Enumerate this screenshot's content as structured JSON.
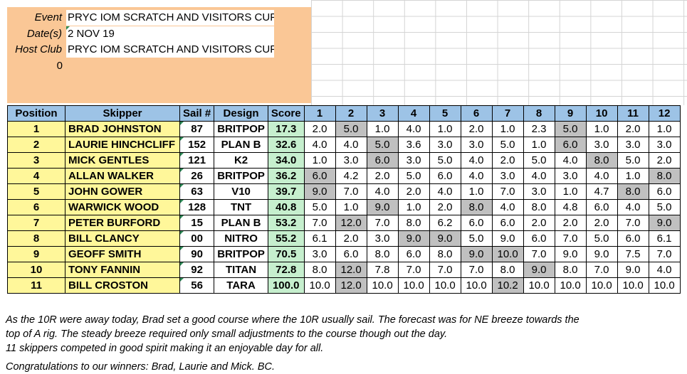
{
  "info": {
    "event_label": "Event",
    "event_value": "PRYC IOM SCRATCH AND VISITORS CUP",
    "dates_label": "Date(s)",
    "dates_value": "2 NOV 19",
    "host_label": "Host Club",
    "host_value": "PRYC IOM SCRATCH AND VISITORS CUP",
    "zero": "0"
  },
  "table": {
    "headers": [
      "Position",
      "Skipper",
      "Sail #",
      "Design",
      "Score",
      "1",
      "2",
      "3",
      "4",
      "5",
      "6",
      "7",
      "8",
      "9",
      "10",
      "11",
      "12"
    ],
    "rows": [
      {
        "pos": "1",
        "skipper": "BRAD JOHNSTON",
        "sail": "87",
        "design": "BRITPOP",
        "score": "17.3",
        "races": [
          "2.0",
          "5.0",
          "1.0",
          "4.0",
          "1.0",
          "2.0",
          "1.0",
          "2.3",
          "5.0",
          "1.0",
          "2.0",
          "1.0"
        ],
        "drops": [
          1,
          8
        ]
      },
      {
        "pos": "2",
        "skipper": "LAURIE HINCHCLIFF",
        "sail": "152",
        "design": "PLAN B",
        "score": "32.6",
        "races": [
          "4.0",
          "4.0",
          "5.0",
          "3.6",
          "3.0",
          "3.0",
          "5.0",
          "1.0",
          "6.0",
          "3.0",
          "3.0",
          "3.0"
        ],
        "drops": [
          2,
          8
        ]
      },
      {
        "pos": "3",
        "skipper": "MICK GENTLES",
        "sail": "121",
        "design": "K2",
        "score": "34.0",
        "races": [
          "1.0",
          "3.0",
          "6.0",
          "3.0",
          "5.0",
          "4.0",
          "2.0",
          "5.0",
          "4.0",
          "8.0",
          "5.0",
          "2.0"
        ],
        "drops": [
          2,
          9
        ]
      },
      {
        "pos": "4",
        "skipper": "ALLAN WALKER",
        "sail": "26",
        "design": "BRITPOP",
        "score": "36.2",
        "races": [
          "6.0",
          "4.2",
          "2.0",
          "5.0",
          "6.0",
          "4.0",
          "3.0",
          "4.0",
          "3.0",
          "4.0",
          "1.0",
          "8.0"
        ],
        "drops": [
          0,
          11
        ]
      },
      {
        "pos": "5",
        "skipper": "JOHN GOWER",
        "sail": "63",
        "design": "V10",
        "score": "39.7",
        "races": [
          "9.0",
          "7.0",
          "4.0",
          "2.0",
          "4.0",
          "1.0",
          "7.0",
          "3.0",
          "1.0",
          "4.7",
          "8.0",
          "6.0"
        ],
        "drops": [
          0,
          10
        ]
      },
      {
        "pos": "6",
        "skipper": "WARWICK WOOD",
        "sail": "128",
        "design": "TNT",
        "score": "40.8",
        "races": [
          "5.0",
          "1.0",
          "9.0",
          "1.0",
          "2.0",
          "8.0",
          "4.0",
          "8.0",
          "4.8",
          "6.0",
          "4.0",
          "5.0"
        ],
        "drops": [
          2,
          5
        ]
      },
      {
        "pos": "7",
        "skipper": "PETER BURFORD",
        "sail": "15",
        "design": "PLAN B",
        "score": "53.2",
        "races": [
          "7.0",
          "12.0",
          "7.0",
          "8.0",
          "6.2",
          "6.0",
          "6.0",
          "2.0",
          "2.0",
          "2.0",
          "7.0",
          "9.0"
        ],
        "drops": [
          1,
          11
        ]
      },
      {
        "pos": "8",
        "skipper": "BILL CLANCY",
        "sail": "00",
        "design": "NITRO",
        "score": "55.2",
        "races": [
          "6.1",
          "2.0",
          "3.0",
          "9.0",
          "9.0",
          "5.0",
          "9.0",
          "6.0",
          "7.0",
          "5.0",
          "6.0",
          "6.1"
        ],
        "drops": [
          3,
          4
        ]
      },
      {
        "pos": "9",
        "skipper": "GEOFF SMITH",
        "sail": "90",
        "design": "BRITPOP",
        "score": "70.5",
        "races": [
          "3.0",
          "6.0",
          "8.0",
          "6.0",
          "8.0",
          "9.0",
          "10.0",
          "7.0",
          "9.0",
          "9.0",
          "7.5",
          "7.0"
        ],
        "drops": [
          5,
          6
        ]
      },
      {
        "pos": "10",
        "skipper": "TONY FANNIN",
        "sail": "92",
        "design": "TITAN",
        "score": "72.8",
        "races": [
          "8.0",
          "12.0",
          "7.8",
          "7.0",
          "7.0",
          "7.0",
          "8.0",
          "9.0",
          "8.0",
          "7.0",
          "9.0",
          "4.0"
        ],
        "drops": [
          1,
          7
        ]
      },
      {
        "pos": "11",
        "skipper": "BILL CROSTON",
        "sail": "56",
        "design": "TARA",
        "score": "100.0",
        "races": [
          "10.0",
          "12.0",
          "10.0",
          "10.0",
          "10.0",
          "10.0",
          "10.2",
          "10.0",
          "10.0",
          "10.0",
          "10.0",
          "10.0"
        ],
        "drops": [
          1,
          6
        ]
      }
    ]
  },
  "notes": {
    "line1": "As the 10R were away today, Brad set a good course where the 10R usually sail. The forecast was for NE breeze towards the",
    "line2": "top of A rig. The steady breeze required only small adjustments to the course though out the day.",
    "line3": "11 skippers competed in good spirit making it an enjoyable day for all.",
    "line4": "Congratulations to our winners: Brad, Laurie and Mick.   BC."
  }
}
